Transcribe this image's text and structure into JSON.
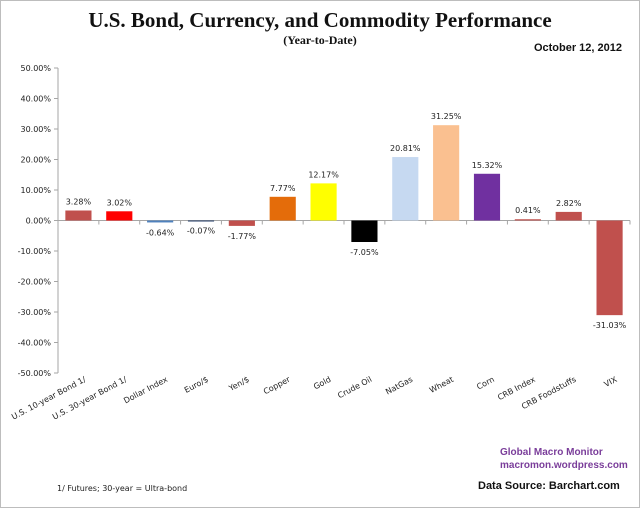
{
  "chart_data": {
    "type": "bar",
    "title": "U.S. Bond, Currency, and Commodity Performance",
    "subtitle": "(Year-to-Date)",
    "date": "October 12, 2012",
    "xlabel": "",
    "ylabel": "",
    "ylim": [
      -50,
      50
    ],
    "yticks": [
      50,
      40,
      30,
      20,
      10,
      0,
      -10,
      -20,
      -30,
      -40,
      -50
    ],
    "ytick_labels": [
      "50.00%",
      "40.00%",
      "30.00%",
      "20.00%",
      "10.00%",
      "0.00%",
      "-10.00%",
      "-20.00%",
      "-30.00%",
      "-40.00%",
      "-50.00%"
    ],
    "grid": false,
    "categories": [
      "U.S. 10-year Bond 1/",
      "U.S. 30-year Bond 1/",
      "Dollar Index",
      "Euro/$",
      "Yen/$",
      "Copper",
      "Gold",
      "Crude Oil",
      "NatGas",
      "Wheat",
      "Corn",
      "CRB Index",
      "CRB Foodstuffs",
      "VIX"
    ],
    "values": [
      3.28,
      3.02,
      -0.64,
      -0.07,
      -1.77,
      7.77,
      12.17,
      -7.05,
      20.81,
      31.25,
      15.32,
      0.41,
      2.82,
      -31.03
    ],
    "value_labels": [
      "3.28%",
      "3.02%",
      "-0.64%",
      "-0.07%",
      "-1.77%",
      "7.77%",
      "12.17%",
      "-7.05%",
      "20.81%",
      "31.25%",
      "15.32%",
      "0.41%",
      "2.82%",
      "-31.03%"
    ],
    "colors": [
      "#c0504d",
      "#ff0000",
      "#4f81bd",
      "#1f3864",
      "#c0504d",
      "#e46c0a",
      "#ffff00",
      "#000000",
      "#c6d9f1",
      "#fac090",
      "#7030a0",
      "#c0504d",
      "#c0504d",
      "#c0504d"
    ]
  },
  "annotations": {
    "brand": "Global Macro Monitor",
    "url": "macromon.wordpress.com",
    "source": "Data Source:  Barchart.com",
    "footnote": "1/  Futures; 30-year = Ultra-bond"
  }
}
